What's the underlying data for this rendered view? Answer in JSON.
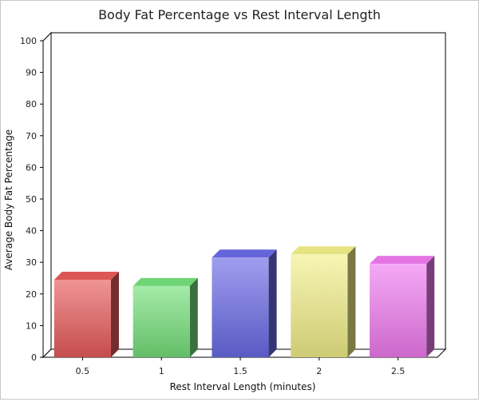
{
  "chart_data": {
    "type": "bar",
    "title": "Body Fat Percentage vs Rest Interval Length",
    "xlabel": "Rest Interval Length (minutes)",
    "ylabel": "Average Body Fat Percentage",
    "categories": [
      "0.5",
      "1",
      "1.5",
      "2",
      "2.5"
    ],
    "values": [
      24.5,
      22.5,
      31.5,
      32.5,
      29.5
    ],
    "ylim": [
      0,
      100
    ],
    "yticks": [
      "0",
      "10",
      "20",
      "30",
      "40",
      "50",
      "60",
      "70",
      "80",
      "90",
      "100"
    ],
    "colors": [
      "#e85a5a",
      "#74e07a",
      "#6a6ae6",
      "#f2ef8a",
      "#f07af0"
    ],
    "legend": "none",
    "grid": false
  }
}
